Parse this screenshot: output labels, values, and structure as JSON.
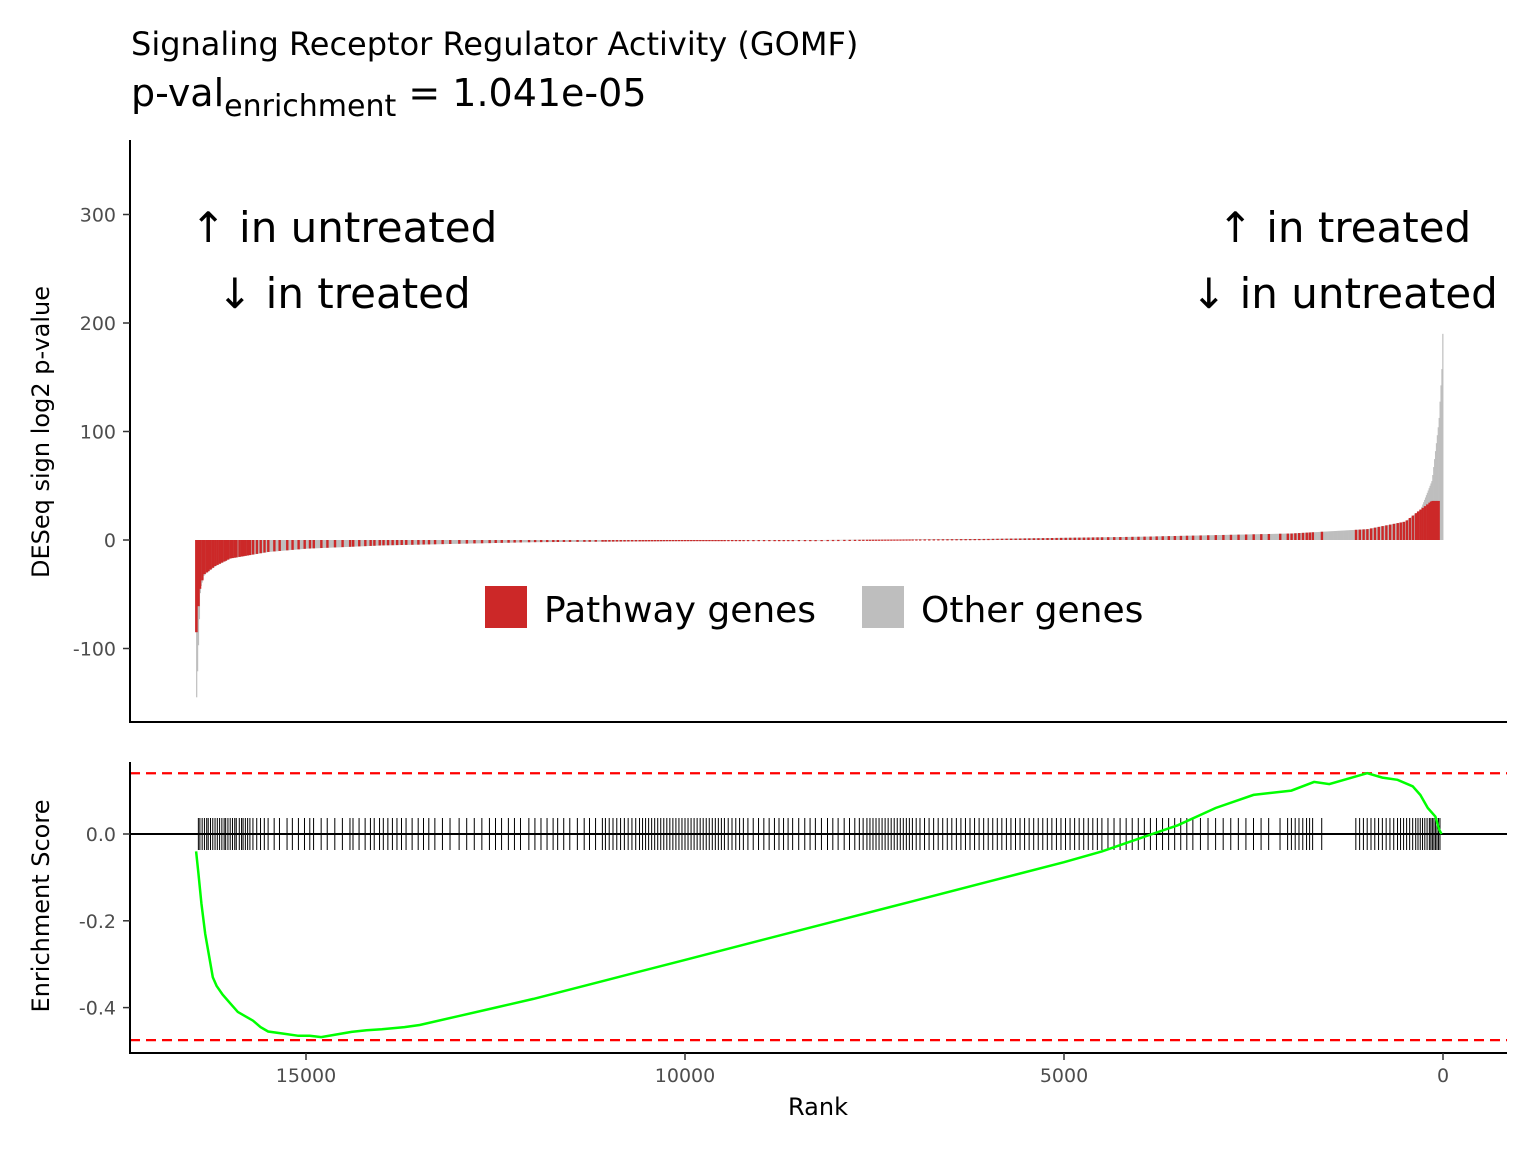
{
  "title": "Signaling Receptor Regulator Activity (GOMF)",
  "subtitle": {
    "prefix": "p-val",
    "subscript": "enrichment",
    "suffix": " = 1.041e-05"
  },
  "colors": {
    "pathway": "#CC2828",
    "other": "#BEBEBE",
    "running_score": "#00FF00",
    "threshold": "#FF0000",
    "ticks": "#000000"
  },
  "chart_data": [
    {
      "type": "bar",
      "ylabel": "DESeq sign log2 p-value",
      "xlabel": "",
      "xlim": [
        16500,
        0
      ],
      "ylim": [
        -165,
        360
      ],
      "yticks": [
        -100,
        0,
        100,
        200,
        300
      ],
      "grid": false,
      "annotations": [
        {
          "lines": [
            "↑ in untreated",
            "↓ in treated"
          ],
          "x": 14500,
          "y": 270
        },
        {
          "lines": [
            "↑ in treated",
            "↓ in untreated"
          ],
          "x": 1300,
          "y": 270
        }
      ],
      "legend": {
        "placement": "center",
        "items": [
          {
            "label": "Pathway genes",
            "color": "#CC2828"
          },
          {
            "label": "Other genes",
            "color": "#BEBEBE"
          }
        ]
      },
      "series": [
        {
          "name": "Other genes",
          "approximate_curve": [
            [
              16450,
              -145
            ],
            [
              16400,
              -45
            ],
            [
              16350,
              -32
            ],
            [
              16200,
              -24
            ],
            [
              16000,
              -17
            ],
            [
              15500,
              -11
            ],
            [
              15000,
              -8
            ],
            [
              14000,
              -5
            ],
            [
              12000,
              -2
            ],
            [
              10000,
              -1
            ],
            [
              8200,
              0
            ],
            [
              6000,
              1
            ],
            [
              4000,
              3
            ],
            [
              2000,
              6
            ],
            [
              1000,
              10
            ],
            [
              500,
              17
            ],
            [
              300,
              28
            ],
            [
              150,
              55
            ],
            [
              60,
              110
            ],
            [
              20,
              160
            ],
            [
              0,
              220
            ]
          ]
        },
        {
          "name": "Pathway genes",
          "approximate_curve": [
            [
              16450,
              -85
            ],
            [
              16400,
              -45
            ],
            [
              16350,
              -32
            ],
            [
              16200,
              -24
            ],
            [
              16000,
              -17
            ],
            [
              15500,
              -11
            ],
            [
              15000,
              -8
            ],
            [
              14000,
              -5
            ],
            [
              12000,
              -2
            ],
            [
              10000,
              -1
            ],
            [
              8200,
              0
            ],
            [
              6000,
              1
            ],
            [
              4000,
              3
            ],
            [
              2000,
              6
            ],
            [
              1000,
              10
            ],
            [
              500,
              17
            ],
            [
              300,
              28
            ],
            [
              150,
              36
            ],
            [
              60,
              36
            ]
          ]
        }
      ]
    },
    {
      "type": "line",
      "xlabel": "Rank",
      "ylabel": "Enrichment Score",
      "xlim": [
        17200,
        -800
      ],
      "ylim": [
        -0.5,
        0.17
      ],
      "xticks": [
        15000,
        10000,
        5000,
        0
      ],
      "yticks": [
        -0.4,
        -0.2,
        0.0
      ],
      "grid": false,
      "thresholds": [
        0.14,
        -0.475
      ],
      "series": [
        {
          "name": "",
          "x": [
            16450,
            16420,
            16380,
            16330,
            16280,
            16230,
            16180,
            16100,
            16000,
            15900,
            15800,
            15700,
            15600,
            15500,
            15300,
            15100,
            14950,
            14800,
            14600,
            14400,
            14200,
            14000,
            13700,
            13500,
            13000,
            12500,
            12000,
            11000,
            10000,
            9000,
            8000,
            7000,
            6000,
            5000,
            4500,
            4000,
            3500,
            3000,
            2500,
            2000,
            1700,
            1500,
            1200,
            1000,
            800,
            600,
            400,
            300,
            200,
            100,
            50,
            20
          ],
          "y": [
            -0.04,
            -0.09,
            -0.16,
            -0.23,
            -0.28,
            -0.33,
            -0.35,
            -0.37,
            -0.39,
            -0.41,
            -0.42,
            -0.43,
            -0.445,
            -0.455,
            -0.46,
            -0.465,
            -0.465,
            -0.468,
            -0.462,
            -0.456,
            -0.452,
            -0.45,
            -0.445,
            -0.44,
            -0.42,
            -0.4,
            -0.38,
            -0.335,
            -0.29,
            -0.245,
            -0.2,
            -0.155,
            -0.11,
            -0.065,
            -0.04,
            -0.01,
            0.02,
            0.06,
            0.09,
            0.1,
            0.12,
            0.115,
            0.13,
            0.14,
            0.13,
            0.125,
            0.11,
            0.09,
            0.06,
            0.04,
            0.01,
            0.0
          ]
        }
      ],
      "tick_ranks": [
        16420,
        16400,
        16370,
        16340,
        16310,
        16290,
        16260,
        16230,
        16200,
        16170,
        16140,
        16110,
        16080,
        16060,
        16030,
        16000,
        15970,
        15940,
        15920,
        15880,
        15850,
        15830,
        15800,
        15770,
        15740,
        15700,
        15650,
        15600,
        15550,
        15500,
        15420,
        15350,
        15250,
        15180,
        15100,
        15020,
        14950,
        14900,
        14800,
        14720,
        14620,
        14520,
        14420,
        14380,
        14300,
        14220,
        14150,
        14100,
        14030,
        13980,
        13920,
        13860,
        13800,
        13740,
        13680,
        13600,
        13520,
        13450,
        13380,
        13300,
        13200,
        13100,
        12980,
        12880,
        12780,
        12680,
        12580,
        12500,
        12420,
        12330,
        12250,
        12170,
        12060,
        11980,
        11900,
        11820,
        11740,
        11680,
        11600,
        11520,
        11420,
        11330,
        11260,
        11180,
        11090,
        11050,
        11000,
        10950,
        10900,
        10850,
        10800,
        10750,
        10700,
        10650,
        10600,
        10560,
        10520,
        10480,
        10440,
        10400,
        10360,
        10320,
        10280,
        10240,
        10200,
        10160,
        10120,
        10080,
        10040,
        10000,
        9960,
        9920,
        9880,
        9840,
        9800,
        9760,
        9720,
        9680,
        9640,
        9600,
        9560,
        9520,
        9480,
        9430,
        9380,
        9330,
        9280,
        9230,
        9170,
        9100,
        9030,
        8960,
        8890,
        8820,
        8760,
        8700,
        8640,
        8580,
        8500,
        8420,
        8350,
        8280,
        8200,
        8120,
        8050,
        7980,
        7900,
        7830,
        7760,
        7700,
        7650,
        7600,
        7560,
        7520,
        7480,
        7440,
        7400,
        7360,
        7320,
        7280,
        7240,
        7200,
        7160,
        7120,
        7080,
        7040,
        7000,
        6950,
        6900,
        6840,
        6780,
        6720,
        6660,
        6600,
        6540,
        6480,
        6420,
        6360,
        6300,
        6240,
        6180,
        6120,
        6060,
        6000,
        5940,
        5880,
        5820,
        5760,
        5700,
        5640,
        5580,
        5520,
        5460,
        5400,
        5340,
        5280,
        5220,
        5160,
        5100,
        5040,
        4980,
        4920,
        4860,
        4800,
        4740,
        4680,
        4620,
        4560,
        4500,
        4420,
        4340,
        4260,
        4180,
        4100,
        4020,
        3940,
        3860,
        3780,
        3700,
        3620,
        3540,
        3460,
        3380,
        3300,
        3200,
        3100,
        3000,
        2900,
        2800,
        2700,
        2600,
        2500,
        2400,
        2300,
        2150,
        2050,
        2000,
        1950,
        1900,
        1850,
        1800,
        1760,
        1720,
        1600,
        1150,
        1100,
        1050,
        1000,
        950,
        900,
        850,
        800,
        750,
        700,
        650,
        600,
        560,
        520,
        480,
        440,
        400,
        360,
        330,
        300,
        270,
        240,
        210,
        180,
        160,
        140,
        120,
        100,
        80,
        60,
        40
      ]
    }
  ]
}
